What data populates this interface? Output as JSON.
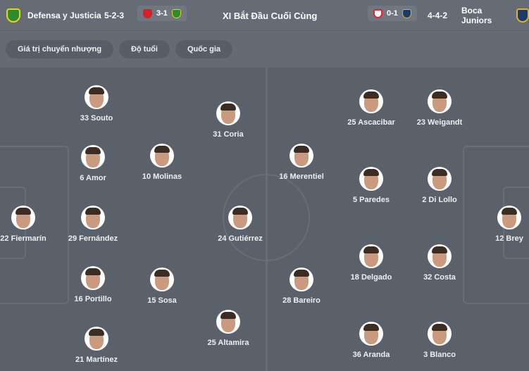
{
  "header": {
    "home_team": "Defensa y Justicia",
    "home_formation": "5-2-3",
    "home_last_score": "3-1",
    "title": "XI Bắt Đầu Cuối Cùng",
    "away_last_score": "0-1",
    "away_formation": "4-4-2",
    "away_team": "Boca Juniors",
    "colors": {
      "defensa": "#2e8b2e",
      "defensa_accent": "#e8d21a",
      "boca": "#1c3a6b",
      "boca_accent": "#e0b520",
      "independiente": "#d61f26",
      "river": "#e32431"
    }
  },
  "filters": [
    "Giá trị chuyển nhượng",
    "Độ tuổi",
    "Quốc gia"
  ],
  "home_players": [
    {
      "label": "33 Souto"
    },
    {
      "label": "31 Coria"
    },
    {
      "label": "6 Amor"
    },
    {
      "label": "10 Molinas"
    },
    {
      "label": "22 Fiermarín"
    },
    {
      "label": "29 Fernández"
    },
    {
      "label": "24 Gutiérrez"
    },
    {
      "label": "16 Portillo"
    },
    {
      "label": "15 Sosa"
    },
    {
      "label": "25 Altamira"
    },
    {
      "label": "21 Martínez"
    }
  ],
  "away_players": [
    {
      "label": "25 Ascacibar"
    },
    {
      "label": "23 Weigandt"
    },
    {
      "label": "16 Merentiel"
    },
    {
      "label": "5 Paredes"
    },
    {
      "label": "2 Di Lollo"
    },
    {
      "label": "12 Brey"
    },
    {
      "label": "18 Delgado"
    },
    {
      "label": "32 Costa"
    },
    {
      "label": "28 Bareiro"
    },
    {
      "label": "36 Aranda"
    },
    {
      "label": "3 Blanco"
    }
  ]
}
